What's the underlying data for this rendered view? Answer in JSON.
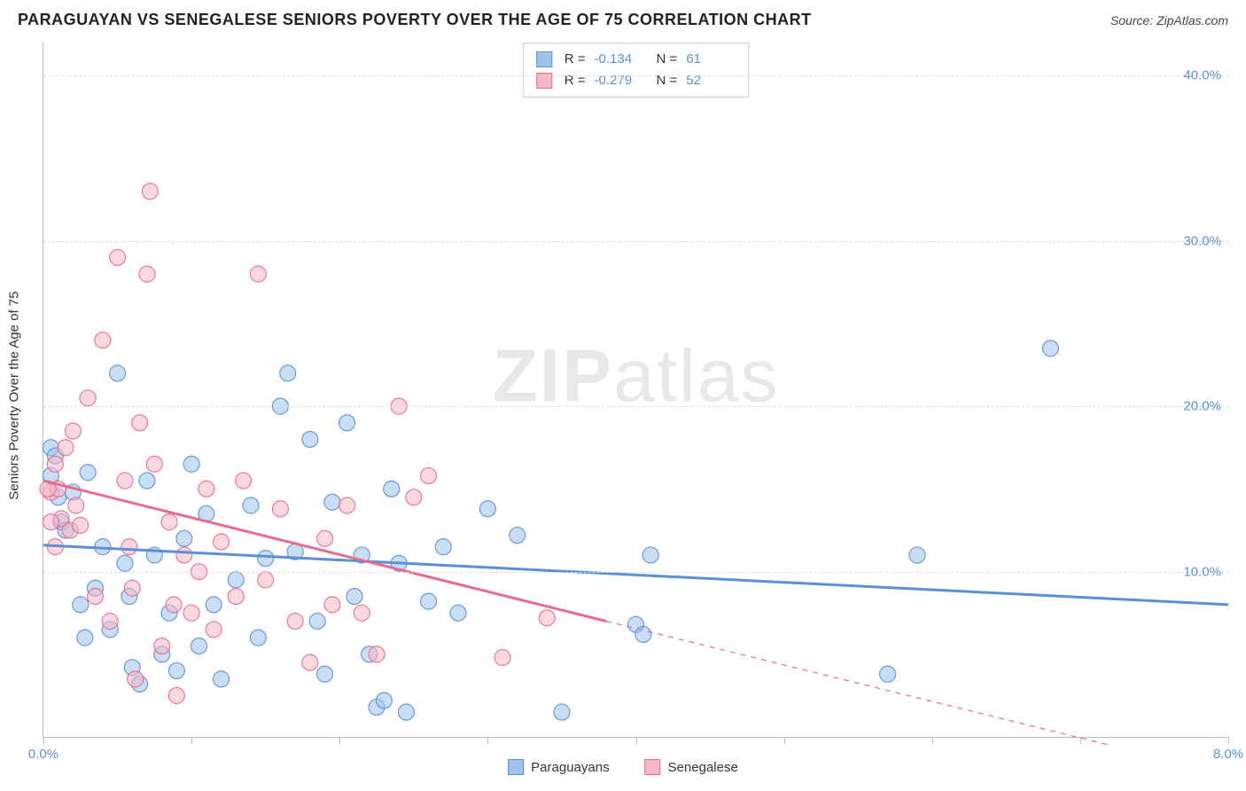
{
  "header": {
    "title": "PARAGUAYAN VS SENEGALESE SENIORS POVERTY OVER THE AGE OF 75 CORRELATION CHART",
    "source_label": "Source: ZipAtlas.com"
  },
  "chart": {
    "type": "scatter",
    "ylabel": "Seniors Poverty Over the Age of 75",
    "xlim": [
      0.0,
      8.0
    ],
    "ylim": [
      0.0,
      42.0
    ],
    "ytick_values": [
      10.0,
      20.0,
      30.0,
      40.0
    ],
    "ytick_labels": [
      "10.0%",
      "20.0%",
      "30.0%",
      "40.0%"
    ],
    "xtick_values": [
      0.0,
      1.0,
      2.0,
      3.0,
      4.0,
      5.0,
      6.0,
      7.0,
      8.0
    ],
    "xtick_labels_shown": {
      "0.0": "0.0%",
      "8.0": "8.0%"
    },
    "grid_color": "#e5e5e5",
    "background_color": "#ffffff",
    "marker_radius": 9,
    "marker_opacity": 0.55,
    "marker_stroke_opacity": 0.9,
    "watermark_text": "ZIPatlas",
    "series": [
      {
        "name": "Paraguayans",
        "color_fill": "#9fc3ea",
        "color_stroke": "#5b8fd6",
        "trend": {
          "x1": 0.0,
          "y1": 11.6,
          "x2": 8.0,
          "y2": 8.0,
          "dashed_after_x": 8.0
        },
        "stats": {
          "R": "-0.134",
          "N": "61"
        },
        "points": [
          [
            0.05,
            17.5
          ],
          [
            0.05,
            15.8
          ],
          [
            0.08,
            17.0
          ],
          [
            0.1,
            14.5
          ],
          [
            0.12,
            13.0
          ],
          [
            0.3,
            16.0
          ],
          [
            0.35,
            9.0
          ],
          [
            0.4,
            11.5
          ],
          [
            0.45,
            6.5
          ],
          [
            0.5,
            22.0
          ],
          [
            0.55,
            10.5
          ],
          [
            0.58,
            8.5
          ],
          [
            0.6,
            4.2
          ],
          [
            0.65,
            3.2
          ],
          [
            0.7,
            15.5
          ],
          [
            0.75,
            11.0
          ],
          [
            0.8,
            5.0
          ],
          [
            0.85,
            7.5
          ],
          [
            0.9,
            4.0
          ],
          [
            0.95,
            12.0
          ],
          [
            1.0,
            16.5
          ],
          [
            1.05,
            5.5
          ],
          [
            1.1,
            13.5
          ],
          [
            1.15,
            8.0
          ],
          [
            1.2,
            3.5
          ],
          [
            1.3,
            9.5
          ],
          [
            1.4,
            14.0
          ],
          [
            1.45,
            6.0
          ],
          [
            1.5,
            10.8
          ],
          [
            1.6,
            20.0
          ],
          [
            1.65,
            22.0
          ],
          [
            1.7,
            11.2
          ],
          [
            1.8,
            18.0
          ],
          [
            1.85,
            7.0
          ],
          [
            1.9,
            3.8
          ],
          [
            1.95,
            14.2
          ],
          [
            2.05,
            19.0
          ],
          [
            2.1,
            8.5
          ],
          [
            2.15,
            11.0
          ],
          [
            2.2,
            5.0
          ],
          [
            2.25,
            1.8
          ],
          [
            2.3,
            2.2
          ],
          [
            2.35,
            15.0
          ],
          [
            2.4,
            10.5
          ],
          [
            2.45,
            1.5
          ],
          [
            2.6,
            8.2
          ],
          [
            2.7,
            11.5
          ],
          [
            2.8,
            7.5
          ],
          [
            3.0,
            13.8
          ],
          [
            3.2,
            12.2
          ],
          [
            3.5,
            1.5
          ],
          [
            4.0,
            6.8
          ],
          [
            4.05,
            6.2
          ],
          [
            4.1,
            11.0
          ],
          [
            5.7,
            3.8
          ],
          [
            5.9,
            11.0
          ],
          [
            6.8,
            23.5
          ],
          [
            0.25,
            8.0
          ],
          [
            0.28,
            6.0
          ],
          [
            0.15,
            12.5
          ],
          [
            0.2,
            14.8
          ]
        ]
      },
      {
        "name": "Senegalese",
        "color_fill": "#f4b8c6",
        "color_stroke": "#e66b8f",
        "trend": {
          "x1": 0.0,
          "y1": 15.5,
          "x2": 3.8,
          "y2": 7.0,
          "dashed_after_x": 3.8,
          "dash_x2": 7.2,
          "dash_y2": -0.5
        },
        "stats": {
          "R": "-0.279",
          "N": "52"
        },
        "points": [
          [
            0.05,
            14.8
          ],
          [
            0.08,
            16.5
          ],
          [
            0.1,
            15.0
          ],
          [
            0.12,
            13.2
          ],
          [
            0.15,
            17.5
          ],
          [
            0.18,
            12.5
          ],
          [
            0.2,
            18.5
          ],
          [
            0.22,
            14.0
          ],
          [
            0.25,
            12.8
          ],
          [
            0.3,
            20.5
          ],
          [
            0.35,
            8.5
          ],
          [
            0.4,
            24.0
          ],
          [
            0.45,
            7.0
          ],
          [
            0.5,
            29.0
          ],
          [
            0.55,
            15.5
          ],
          [
            0.58,
            11.5
          ],
          [
            0.6,
            9.0
          ],
          [
            0.62,
            3.5
          ],
          [
            0.65,
            19.0
          ],
          [
            0.7,
            28.0
          ],
          [
            0.72,
            33.0
          ],
          [
            0.75,
            16.5
          ],
          [
            0.8,
            5.5
          ],
          [
            0.85,
            13.0
          ],
          [
            0.88,
            8.0
          ],
          [
            0.9,
            2.5
          ],
          [
            0.95,
            11.0
          ],
          [
            1.0,
            7.5
          ],
          [
            1.05,
            10.0
          ],
          [
            1.1,
            15.0
          ],
          [
            1.15,
            6.5
          ],
          [
            1.2,
            11.8
          ],
          [
            1.3,
            8.5
          ],
          [
            1.35,
            15.5
          ],
          [
            1.45,
            28.0
          ],
          [
            1.5,
            9.5
          ],
          [
            1.6,
            13.8
          ],
          [
            1.7,
            7.0
          ],
          [
            1.8,
            4.5
          ],
          [
            1.9,
            12.0
          ],
          [
            1.95,
            8.0
          ],
          [
            2.05,
            14.0
          ],
          [
            2.15,
            7.5
          ],
          [
            2.25,
            5.0
          ],
          [
            2.4,
            20.0
          ],
          [
            2.5,
            14.5
          ],
          [
            2.6,
            15.8
          ],
          [
            3.1,
            4.8
          ],
          [
            3.4,
            7.2
          ],
          [
            0.05,
            13.0
          ],
          [
            0.08,
            11.5
          ],
          [
            0.03,
            15.0
          ]
        ]
      }
    ]
  },
  "legend": {
    "items": [
      "Paraguayans",
      "Senegalese"
    ]
  }
}
